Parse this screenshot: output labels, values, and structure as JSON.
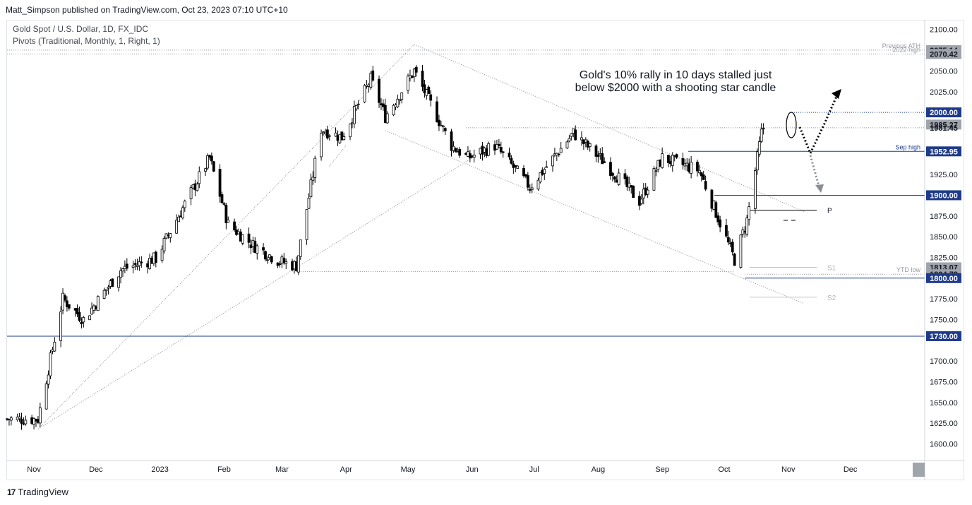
{
  "header": {
    "publisher": "Matt_Simpson published on TradingView.com, Oct 23, 2023 07:10 UTC+10"
  },
  "legend": {
    "line1": "Gold Spot / U.S. Dollar, 1D, FX_IDC",
    "line2": "Pivots (Traditional, Monthly, 1, Right, 1)"
  },
  "annotation": {
    "line1": "Gold's 10% rally in 10 days stalled just",
    "line2": "below $2000 with a shooting star candle"
  },
  "footer": {
    "brand": "TradingView",
    "logo": "17"
  },
  "colors": {
    "level_line": "#1e3a8a",
    "badge_blue": "#1e3a8a",
    "badge_grey": "#a0a4ab",
    "candle": "#000000",
    "arrow_grey": "#8a8d93"
  },
  "chart_data": {
    "type": "candlestick",
    "ylim": [
      1580,
      2110
    ],
    "xlim": [
      "2022-10-19",
      "2024-01-06"
    ],
    "y_ticks": [
      1600,
      1625,
      1650,
      1675,
      1700,
      1725,
      1750,
      1775,
      1800,
      1825,
      1850,
      1875,
      1900,
      1925,
      1950,
      1975,
      2000,
      2025,
      2050,
      2075,
      2100
    ],
    "y_tick_labels": [
      "1600.00",
      "1625.00",
      "1650.00",
      "1675.00",
      "1700.00",
      "",
      "1750.00",
      "1775.00",
      "",
      "1825.00",
      "1850.00",
      "1875.00",
      "",
      "1925.00",
      "",
      "",
      "",
      "2025.00",
      "2050.00",
      "",
      "2100.00"
    ],
    "x_ticks": [
      {
        "date": "2022-11-01",
        "label": "Nov"
      },
      {
        "date": "2022-12-01",
        "label": "Dec"
      },
      {
        "date": "2023-01-01",
        "label": "2023"
      },
      {
        "date": "2023-02-01",
        "label": "Feb"
      },
      {
        "date": "2023-03-01",
        "label": "Mar"
      },
      {
        "date": "2023-04-01",
        "label": "Apr"
      },
      {
        "date": "2023-05-01",
        "label": "May"
      },
      {
        "date": "2023-06-01",
        "label": "Jun"
      },
      {
        "date": "2023-07-01",
        "label": "Jul"
      },
      {
        "date": "2023-08-01",
        "label": "Aug"
      },
      {
        "date": "2023-09-01",
        "label": "Sep"
      },
      {
        "date": "2023-10-01",
        "label": "Oct"
      },
      {
        "date": "2023-11-01",
        "label": "Nov"
      },
      {
        "date": "2023-12-01",
        "label": "Dec"
      }
    ],
    "price_levels": [
      {
        "value": 2075.14,
        "label": "2075.14",
        "side_text": "Previous ATH",
        "style": "grey",
        "line": "dotted"
      },
      {
        "value": 2070.42,
        "label": "2070.42",
        "side_text": "2022 high",
        "style": "grey",
        "line": "dotted"
      },
      {
        "value": 2000.0,
        "label": "2000.00",
        "side_text": "",
        "style": "blue",
        "line": "dotted"
      },
      {
        "value": 1985.27,
        "label": "1985.27",
        "side_text": "",
        "style": "grey",
        "line": "none"
      },
      {
        "value": 1981.45,
        "label": "1981.45",
        "side_text": "",
        "style": "plain",
        "line": "dotted"
      },
      {
        "value": 1952.95,
        "label": "1952.95",
        "side_text": "Sep high",
        "style": "blue",
        "line": "solid"
      },
      {
        "value": 1900.0,
        "label": "1900.00",
        "side_text": "",
        "style": "blue",
        "line": "solid"
      },
      {
        "value": 1813.07,
        "label": "1813.07",
        "side_text": "",
        "style": "grey",
        "line": "none"
      },
      {
        "value": 1804.78,
        "label": "1804.78",
        "side_text": "YTD low",
        "style": "grey",
        "line": "dotted"
      },
      {
        "value": 1800.0,
        "label": "1800.00",
        "side_text": "",
        "style": "blue",
        "line": "solid"
      },
      {
        "value": 1730.0,
        "label": "1730.00",
        "side_text": "",
        "style": "blue",
        "line": "solid"
      }
    ],
    "pivots": [
      {
        "name": "P",
        "value": 1882
      },
      {
        "name": "S1",
        "value": 1813
      },
      {
        "name": "S2",
        "value": 1777
      }
    ],
    "key_points": [
      {
        "date": "2022-10-19",
        "close": 1630
      },
      {
        "date": "2022-11-03",
        "close": 1630
      },
      {
        "date": "2022-11-15",
        "close": 1775
      },
      {
        "date": "2022-11-25",
        "close": 1750
      },
      {
        "date": "2022-12-13",
        "close": 1810
      },
      {
        "date": "2022-12-30",
        "close": 1824
      },
      {
        "date": "2023-01-25",
        "close": 1945
      },
      {
        "date": "2023-02-03",
        "close": 1865
      },
      {
        "date": "2023-02-15",
        "close": 1840
      },
      {
        "date": "2023-02-28",
        "close": 1820
      },
      {
        "date": "2023-03-08",
        "close": 1815
      },
      {
        "date": "2023-03-20",
        "close": 1980
      },
      {
        "date": "2023-03-30",
        "close": 1970
      },
      {
        "date": "2023-04-13",
        "close": 2040
      },
      {
        "date": "2023-04-20",
        "close": 1995
      },
      {
        "date": "2023-05-04",
        "close": 2050
      },
      {
        "date": "2023-05-22",
        "close": 1960
      },
      {
        "date": "2023-05-30",
        "close": 1945
      },
      {
        "date": "2023-06-12",
        "close": 1960
      },
      {
        "date": "2023-06-29",
        "close": 1910
      },
      {
        "date": "2023-07-20",
        "close": 1975
      },
      {
        "date": "2023-08-04",
        "close": 1940
      },
      {
        "date": "2023-08-21",
        "close": 1893
      },
      {
        "date": "2023-09-01",
        "close": 1945
      },
      {
        "date": "2023-09-19",
        "close": 1930
      },
      {
        "date": "2023-10-06",
        "close": 1822
      },
      {
        "date": "2023-10-12",
        "close": 1870
      },
      {
        "date": "2023-10-19",
        "close": 1975
      },
      {
        "date": "2023-10-20",
        "close": 1981.45
      }
    ]
  }
}
